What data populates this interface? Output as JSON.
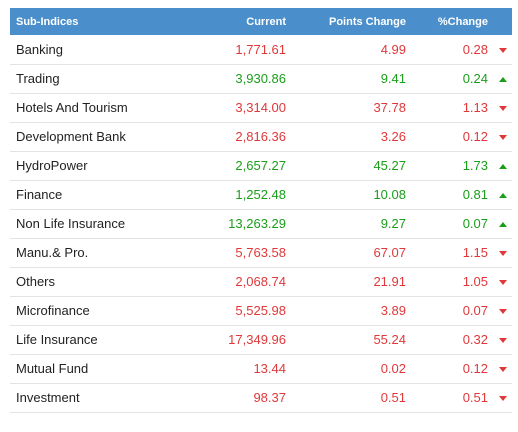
{
  "header": {
    "name": "Sub-Indices",
    "current": "Current",
    "points_change": "Points Change",
    "pct_change": "%Change"
  },
  "colors": {
    "header_bg": "#4a8fcb",
    "down": "#e0383a",
    "up": "#1a9e1a"
  },
  "rows": [
    {
      "name": "Banking",
      "current": "1,771.61",
      "points": "4.99",
      "pct": "0.28",
      "dir": "down",
      "icon": "arrow-down-icon"
    },
    {
      "name": "Trading",
      "current": "3,930.86",
      "points": "9.41",
      "pct": "0.24",
      "dir": "up",
      "icon": "arrow-up-icon"
    },
    {
      "name": "Hotels And Tourism",
      "current": "3,314.00",
      "points": "37.78",
      "pct": "1.13",
      "dir": "down",
      "icon": "arrow-down-icon"
    },
    {
      "name": "Development Bank",
      "current": "2,816.36",
      "points": "3.26",
      "pct": "0.12",
      "dir": "down",
      "icon": "arrow-down-icon"
    },
    {
      "name": "HydroPower",
      "current": "2,657.27",
      "points": "45.27",
      "pct": "1.73",
      "dir": "up",
      "icon": "arrow-up-icon"
    },
    {
      "name": "Finance",
      "current": "1,252.48",
      "points": "10.08",
      "pct": "0.81",
      "dir": "up",
      "icon": "arrow-up-icon"
    },
    {
      "name": "Non Life Insurance",
      "current": "13,263.29",
      "points": "9.27",
      "pct": "0.07",
      "dir": "up",
      "icon": "arrow-up-icon"
    },
    {
      "name": "Manu.& Pro.",
      "current": "5,763.58",
      "points": "67.07",
      "pct": "1.15",
      "dir": "down",
      "icon": "arrow-down-icon"
    },
    {
      "name": "Others",
      "current": "2,068.74",
      "points": "21.91",
      "pct": "1.05",
      "dir": "down",
      "icon": "arrow-down-icon"
    },
    {
      "name": "Microfinance",
      "current": "5,525.98",
      "points": "3.89",
      "pct": "0.07",
      "dir": "down",
      "icon": "arrow-down-icon"
    },
    {
      "name": "Life Insurance",
      "current": "17,349.96",
      "points": "55.24",
      "pct": "0.32",
      "dir": "down",
      "icon": "arrow-down-icon"
    },
    {
      "name": "Mutual Fund",
      "current": "13.44",
      "points": "0.02",
      "pct": "0.12",
      "dir": "down",
      "icon": "arrow-down-icon"
    },
    {
      "name": "Investment",
      "current": "98.37",
      "points": "0.51",
      "pct": "0.51",
      "dir": "down",
      "icon": "arrow-down-icon"
    }
  ]
}
